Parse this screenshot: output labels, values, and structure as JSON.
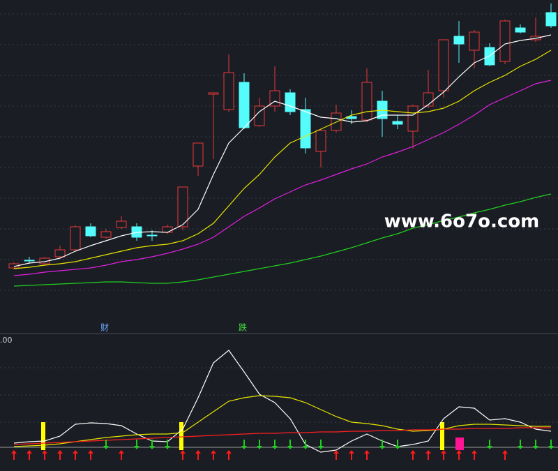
{
  "chart_data": [
    {
      "type": "candlestick",
      "open": [
        76,
        87,
        82,
        92,
        102,
        135,
        120,
        134,
        135,
        123,
        127,
        135,
        222,
        325,
        303,
        342,
        280,
        308,
        327,
        303,
        243,
        273,
        293,
        288,
        315,
        286,
        272,
        308,
        330,
        408,
        388,
        392,
        372,
        420,
        403,
        442
      ],
      "high": [
        84,
        92,
        92,
        108,
        137,
        140,
        132,
        150,
        140,
        130,
        138,
        192,
        255,
        327,
        382,
        355,
        320,
        365,
        332,
        320,
        275,
        310,
        302,
        362,
        330,
        295,
        310,
        360,
        403,
        430,
        417,
        398,
        432,
        425,
        435,
        455
      ],
      "low": [
        74,
        82,
        80,
        90,
        100,
        120,
        118,
        132,
        115,
        115,
        125,
        130,
        208,
        232,
        300,
        275,
        278,
        300,
        295,
        240,
        220,
        270,
        282,
        285,
        264,
        275,
        247,
        305,
        320,
        370,
        362,
        365,
        368,
        412,
        400,
        420
      ],
      "close": [
        82,
        86,
        90,
        102,
        135,
        122,
        128,
        143,
        120,
        122,
        135,
        192,
        255,
        327,
        356,
        277,
        308,
        330,
        300,
        248,
        273,
        298,
        290,
        342,
        290,
        282,
        308,
        327,
        403,
        397,
        414,
        367,
        430,
        414,
        408,
        423
      ],
      "up_color": "#e8393a",
      "down_color": "#54fcfc",
      "series": [
        {
          "color": "#ffffff",
          "values": [
            78,
            83,
            85,
            90,
            100,
            108,
            115,
            122,
            127,
            128,
            127,
            138,
            160,
            210,
            255,
            277,
            300,
            315,
            308,
            300,
            292,
            290,
            285,
            287,
            295,
            295,
            295,
            310,
            328,
            350,
            370,
            380,
            397,
            402,
            405,
            410
          ]
        },
        {
          "color": "#e6e600",
          "values": [
            75,
            77,
            80,
            82,
            85,
            90,
            95,
            100,
            105,
            108,
            110,
            115,
            125,
            140,
            165,
            190,
            210,
            235,
            255,
            265,
            275,
            285,
            295,
            300,
            302,
            300,
            298,
            300,
            305,
            315,
            330,
            342,
            352,
            365,
            375,
            388
          ]
        },
        {
          "color": "#e020e0",
          "values": [
            65,
            67,
            70,
            72,
            74,
            76,
            80,
            85,
            88,
            92,
            97,
            103,
            110,
            120,
            135,
            150,
            162,
            175,
            185,
            195,
            202,
            210,
            218,
            225,
            235,
            242,
            250,
            260,
            270,
            282,
            295,
            310,
            320,
            330,
            340,
            345
          ]
        },
        {
          "color": "#20d020",
          "values": [
            50,
            51,
            52,
            53,
            54,
            55,
            56,
            56,
            55,
            54,
            54,
            56,
            59,
            63,
            67,
            71,
            75,
            79,
            83,
            88,
            93,
            99,
            105,
            112,
            119,
            125,
            133,
            138,
            144,
            149,
            155,
            160,
            166,
            171,
            177,
            182
          ]
        }
      ],
      "ylim": [
        0,
        460
      ],
      "annotations": [
        "财",
        "跌"
      ],
      "watermark": "www.6o7o.com"
    },
    {
      "type": "indicator",
      "series": [
        {
          "color": "#ffffff",
          "values": [
            10,
            12,
            13,
            20,
            37,
            39,
            38,
            35,
            23,
            13,
            12,
            30,
            75,
            125,
            143,
            112,
            80,
            68,
            45,
            8,
            -3,
            0,
            13,
            23,
            13,
            5,
            8,
            13,
            45,
            62,
            60,
            43,
            45,
            40,
            30,
            27
          ]
        },
        {
          "color": "#e6e600",
          "values": [
            5,
            6,
            7,
            9,
            12,
            15,
            18,
            20,
            22,
            23,
            23,
            25,
            40,
            55,
            70,
            75,
            78,
            77,
            75,
            68,
            58,
            48,
            40,
            38,
            35,
            30,
            27,
            28,
            30,
            35,
            37,
            37,
            36,
            35,
            34,
            34
          ]
        },
        {
          "color": "#ff2020",
          "values": [
            8,
            9,
            10,
            11,
            12,
            13,
            14,
            15,
            16,
            17,
            18,
            19,
            20,
            21,
            22,
            23,
            24,
            24,
            25,
            25,
            26,
            26,
            27,
            27,
            28,
            28,
            29,
            29,
            30,
            30,
            31,
            31,
            31,
            32,
            32,
            32
          ]
        }
      ],
      "bars": [
        {
          "color": "#ffff00",
          "values": [
            null,
            null,
            40,
            null,
            null,
            null,
            null,
            null,
            null,
            null,
            null,
            40,
            null,
            null,
            null,
            null,
            null,
            null,
            null,
            null,
            null,
            null,
            null,
            null,
            null,
            null,
            null,
            null,
            40,
            null,
            null,
            null,
            null,
            null,
            null,
            null
          ]
        },
        {
          "color": "#ff1493",
          "values": [
            null,
            null,
            null,
            null,
            null,
            null,
            null,
            null,
            null,
            null,
            null,
            null,
            null,
            null,
            null,
            null,
            null,
            null,
            null,
            null,
            null,
            null,
            null,
            null,
            null,
            null,
            null,
            null,
            null,
            18,
            null,
            null,
            null,
            null,
            null,
            null
          ]
        }
      ],
      "signal": [
        1,
        1,
        1,
        1,
        1,
        1,
        -1,
        1,
        -1,
        -1,
        -1,
        1,
        1,
        1,
        1,
        -1,
        -1,
        -1,
        -1,
        -1,
        -1,
        1,
        1,
        1,
        -1,
        -1,
        1,
        1,
        1,
        1,
        1,
        -1,
        1,
        -1,
        -1,
        -1
      ],
      "up_color": "#ff1a1a",
      "down_color": "#19d219",
      "ylim": [
        -30,
        165
      ],
      "ytick_label": ".00"
    }
  ]
}
